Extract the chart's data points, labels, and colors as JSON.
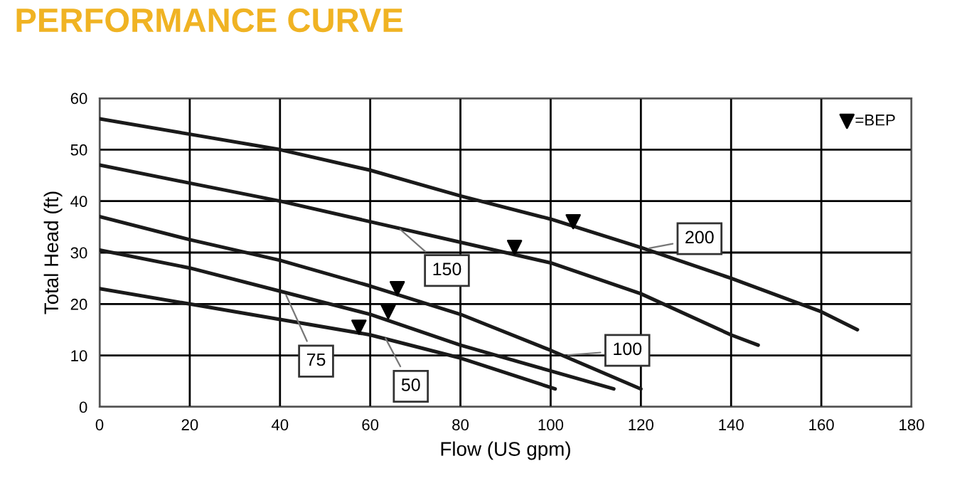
{
  "chart_data": {
    "type": "line",
    "title": "PERFORMANCE CURVE",
    "xlabel": "Flow (US gpm)",
    "ylabel": "Total Head (ft)",
    "xlim": [
      0,
      180
    ],
    "ylim": [
      0,
      60
    ],
    "xticks": [
      0,
      20,
      40,
      60,
      80,
      100,
      120,
      140,
      160,
      180
    ],
    "yticks": [
      0,
      10,
      20,
      30,
      40,
      50,
      60
    ],
    "grid": true,
    "legend": "top right",
    "marker": "none",
    "series": [
      {
        "color": "#1a1a1a",
        "x": [
          0,
          20,
          40,
          60,
          80,
          100,
          120,
          140,
          160,
          168
        ],
        "values": [
          56,
          53,
          50,
          46,
          41,
          36.5,
          31,
          25,
          18.5,
          15
        ]
      },
      {
        "color": "#1a1a1a",
        "x": [
          0,
          20,
          40,
          60,
          80,
          100,
          120,
          140,
          146
        ],
        "values": [
          47,
          43.5,
          40,
          36,
          32,
          28,
          22,
          14,
          12
        ]
      },
      {
        "color": "#1a1a1a",
        "x": [
          0,
          20,
          40,
          60,
          80,
          100,
          120
        ],
        "values": [
          37,
          32.5,
          28.5,
          23.5,
          18,
          11,
          3.5
        ]
      },
      {
        "color": "#1a1a1a",
        "x": [
          0,
          20,
          40,
          60,
          80,
          100,
          114
        ],
        "values": [
          30.5,
          27,
          22.5,
          18,
          12,
          7,
          3.5
        ]
      },
      {
        "color": "#1a1a1a",
        "x": [
          0,
          20,
          40,
          60,
          80,
          101
        ],
        "values": [
          23,
          20,
          17,
          14,
          9.5,
          3.5
        ]
      },
      {
        "type": "scatter",
        "name": "=BEP",
        "marker": "triangle",
        "color": "#000000",
        "x": [
          105,
          92,
          66,
          64,
          57.5
        ],
        "values": [
          36,
          31,
          23,
          18.5,
          15.5
        ]
      }
    ],
    "annotations": [
      {
        "text": "200",
        "x": 121,
        "y": 30.7
      },
      {
        "text": "150",
        "x": 66,
        "y": 35
      },
      {
        "text": "100",
        "x": 103,
        "y": 10
      },
      {
        "text": "75",
        "x": 41,
        "y": 22.4
      },
      {
        "text": "50",
        "x": 63,
        "y": 14
      }
    ]
  }
}
